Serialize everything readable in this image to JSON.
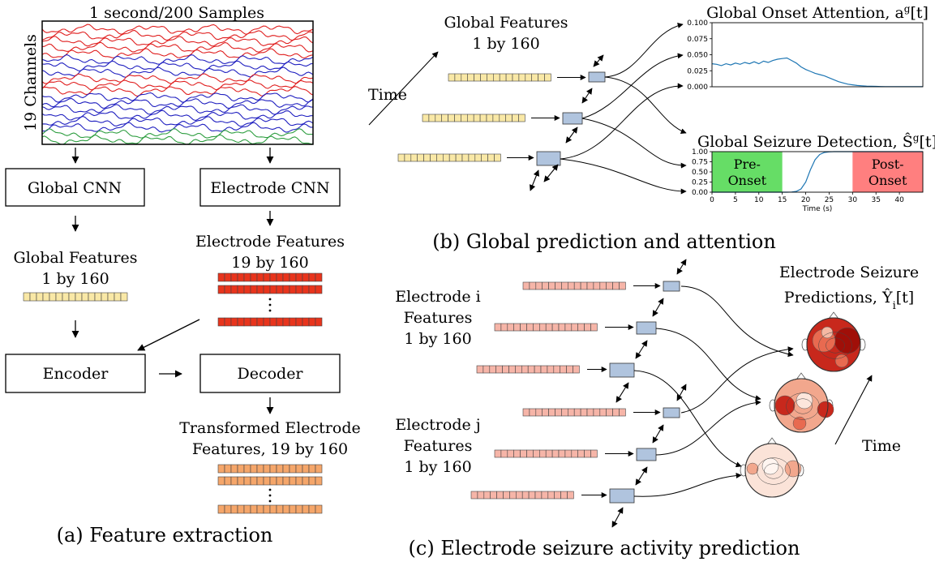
{
  "panel_a": {
    "eeg_title": "1 second/200 Samples",
    "eeg_ylabel": "19 Channels",
    "global_cnn": "Global CNN",
    "electrode_cnn": "Electrode CNN",
    "global_features_title": "Global Features",
    "global_features_size": "1 by 160",
    "electrode_features_title": "Electrode Features",
    "electrode_features_size": "19 by 160",
    "encoder": "Encoder",
    "decoder": "Decoder",
    "transformed_title": "Transformed Electrode",
    "transformed_size": "Features, 19 by 160",
    "caption": "(a) Feature extraction",
    "colors": {
      "feature_yellow": "#f9e8a6",
      "feature_red": "#e8341c",
      "feature_orange": "#f5a66a",
      "eeg_red": "#e02020",
      "eeg_blue": "#2020c0",
      "eeg_green": "#2e9e40"
    }
  },
  "panel_b": {
    "time_label": "Time",
    "global_features_title": "Global Features",
    "global_features_size": "1 by 160",
    "caption": "(b) Global prediction and attention",
    "colors": {
      "token": "#b0c4de",
      "line": "#1f77b4",
      "pre_onset": "#66dd66",
      "post_onset": "#ff7f7f"
    }
  },
  "panel_c": {
    "electrode_i_1": "Electrode i",
    "electrode_i_2": "Features",
    "electrode_i_3": "1 by 160",
    "electrode_j_1": "Electrode j",
    "electrode_j_2": "Features",
    "electrode_j_3": "1 by 160",
    "pred_title_1": "Electrode Seizure",
    "pred_title_2": "Predictions, Ŷ",
    "pred_title_sub": "i",
    "pred_title_tail": "[t]",
    "time_label": "Time",
    "caption": "(c) Electrode seizure activity prediction",
    "colors": {
      "feature_pink": "#f6b5a8"
    }
  },
  "chart_data": [
    {
      "type": "line",
      "title": "Global Onset Attention, a",
      "title_sup": "g",
      "title_tail": "[t]",
      "xlim": [
        0,
        45
      ],
      "ylim": [
        0,
        0.1
      ],
      "yticks": [
        "0.000",
        "0.025",
        "0.050",
        "0.075",
        "0.100"
      ],
      "x": [
        0,
        1,
        2,
        3,
        4,
        5,
        6,
        7,
        8,
        9,
        10,
        11,
        12,
        13,
        14,
        15,
        16,
        17,
        18,
        19,
        20,
        21,
        22,
        23,
        24,
        25,
        26,
        27,
        28,
        29,
        30,
        31,
        32,
        33,
        34,
        35,
        36,
        37,
        38,
        39,
        40,
        41,
        42,
        43,
        44,
        45
      ],
      "values": [
        0.036,
        0.035,
        0.033,
        0.036,
        0.034,
        0.037,
        0.035,
        0.038,
        0.036,
        0.039,
        0.036,
        0.04,
        0.038,
        0.041,
        0.043,
        0.044,
        0.045,
        0.041,
        0.037,
        0.031,
        0.027,
        0.024,
        0.021,
        0.019,
        0.017,
        0.014,
        0.011,
        0.008,
        0.006,
        0.004,
        0.003,
        0.002,
        0.0015,
        0.001,
        0.0008,
        0.0006,
        0.0004,
        0.0003,
        0.0002,
        0.0002,
        0.0001,
        0.0001,
        0.0001,
        0.0001,
        0.0001,
        0.0001
      ],
      "grid": false
    },
    {
      "type": "line",
      "title": "Global Seizure Detection, Ŝ",
      "title_sup": "g",
      "title_tail": "[t]",
      "xlabel": "Time (s)",
      "xlim": [
        0,
        45
      ],
      "ylim": [
        0,
        1
      ],
      "xticks": [
        "0",
        "5",
        "10",
        "15",
        "20",
        "25",
        "30",
        "35",
        "40"
      ],
      "yticks": [
        "0.00",
        "0.25",
        "0.50",
        "0.75",
        "1.00"
      ],
      "regions": [
        {
          "label_1": "Pre-",
          "label_2": "Onset",
          "from": 0,
          "to": 15,
          "color": "#66dd66"
        },
        {
          "label_1": "Post-",
          "label_2": "Onset",
          "from": 30,
          "to": 45,
          "color": "#ff7f7f"
        }
      ],
      "x": [
        0,
        2,
        4,
        6,
        8,
        10,
        12,
        14,
        15,
        16,
        17,
        18,
        19,
        20,
        21,
        22,
        23,
        24,
        25,
        26,
        27,
        28,
        30,
        35,
        40,
        45
      ],
      "values": [
        0,
        0,
        0,
        0,
        0,
        0,
        0,
        0,
        0,
        0,
        0.005,
        0.02,
        0.08,
        0.25,
        0.55,
        0.8,
        0.93,
        0.98,
        0.995,
        1,
        1,
        1,
        1,
        1,
        1,
        1
      ],
      "grid": false
    }
  ]
}
